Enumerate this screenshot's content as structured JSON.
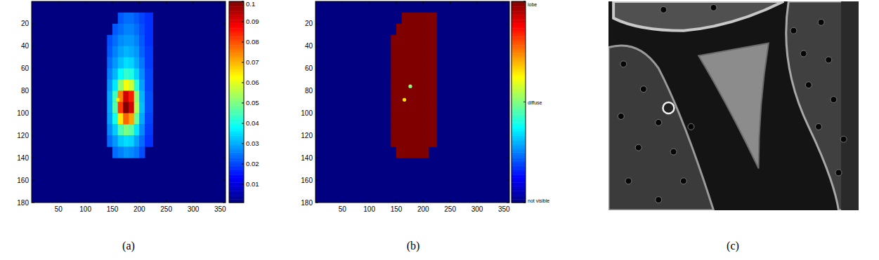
{
  "chart_data": [
    {
      "type": "heatmap",
      "title": "(a)",
      "marker": "square",
      "xlim": [
        0,
        360
      ],
      "ylim": [
        0,
        180
      ],
      "xticks": [
        50,
        100,
        150,
        200,
        250,
        300,
        350
      ],
      "yticks": [
        20,
        40,
        60,
        80,
        100,
        120,
        140,
        160,
        180
      ],
      "x_edges": [
        140,
        150,
        160,
        170,
        180,
        190,
        200,
        210,
        225
      ],
      "y_edges": [
        10,
        20,
        30,
        40,
        50,
        60,
        70,
        80,
        90,
        100,
        110,
        120,
        130,
        140
      ],
      "cells": [
        [
          null,
          null,
          0.022,
          0.024,
          0.024,
          0.022,
          0.02,
          0.018
        ],
        [
          null,
          0.022,
          0.024,
          0.026,
          0.026,
          0.024,
          0.021,
          0.018
        ],
        [
          0.021,
          0.024,
          0.027,
          0.028,
          0.028,
          0.026,
          0.022,
          0.018
        ],
        [
          0.022,
          0.026,
          0.029,
          0.031,
          0.03,
          0.028,
          0.023,
          0.019
        ],
        [
          0.024,
          0.028,
          0.032,
          0.035,
          0.034,
          0.03,
          0.025,
          0.019
        ],
        [
          0.026,
          0.031,
          0.038,
          0.043,
          0.041,
          0.034,
          0.027,
          0.02
        ],
        [
          0.028,
          0.036,
          0.052,
          0.062,
          0.058,
          0.042,
          0.029,
          0.02
        ],
        [
          0.03,
          0.044,
          0.075,
          0.092,
          0.085,
          0.052,
          0.031,
          0.021
        ],
        [
          0.03,
          0.046,
          0.082,
          0.1,
          0.092,
          0.055,
          0.032,
          0.021
        ],
        [
          0.029,
          0.04,
          0.065,
          0.078,
          0.072,
          0.048,
          0.03,
          0.02
        ],
        [
          0.027,
          0.033,
          0.045,
          0.05,
          0.047,
          0.036,
          0.027,
          0.019
        ],
        [
          0.024,
          0.028,
          0.033,
          0.035,
          0.034,
          0.029,
          0.024,
          0.018
        ],
        [
          null,
          0.024,
          0.026,
          0.028,
          0.027,
          0.025,
          0.021,
          null
        ]
      ],
      "points": [
        {
          "x": 160,
          "y": 88,
          "value": 0.065
        }
      ],
      "color_range": [
        0.001,
        0.1
      ],
      "color_ticks": [
        0.01,
        0.02,
        0.03,
        0.04,
        0.05,
        0.06,
        0.07,
        0.08,
        0.09,
        0.1
      ]
    },
    {
      "type": "heatmap",
      "title": "(b)",
      "marker": "circle",
      "xlim": [
        0,
        360
      ],
      "ylim": [
        0,
        180
      ],
      "xticks": [
        50,
        100,
        150,
        200,
        250,
        300,
        350
      ],
      "yticks": [
        20,
        40,
        60,
        80,
        100,
        120,
        140,
        160,
        180
      ],
      "x_edges": [
        140,
        150,
        160,
        170,
        180,
        190,
        200,
        210,
        225
      ],
      "y_edges": [
        10,
        20,
        30,
        40,
        50,
        60,
        70,
        80,
        90,
        100,
        110,
        120,
        130,
        140
      ],
      "cells": [
        [
          null,
          null,
          2,
          2,
          2,
          2,
          2,
          2
        ],
        [
          null,
          2,
          2,
          2,
          2,
          2,
          2,
          2
        ],
        [
          2,
          2,
          2,
          2,
          2,
          2,
          2,
          2
        ],
        [
          2,
          2,
          2,
          2,
          2,
          2,
          2,
          2
        ],
        [
          2,
          2,
          2,
          2,
          2,
          2,
          2,
          2
        ],
        [
          2,
          2,
          2,
          2,
          2,
          2,
          2,
          2
        ],
        [
          2,
          2,
          2,
          2,
          2,
          2,
          2,
          2
        ],
        [
          2,
          2,
          2,
          2,
          2,
          2,
          2,
          2
        ],
        [
          2,
          2,
          2,
          2,
          2,
          2,
          2,
          2
        ],
        [
          2,
          2,
          2,
          2,
          2,
          2,
          2,
          2
        ],
        [
          2,
          2,
          2,
          2,
          2,
          2,
          2,
          2
        ],
        [
          2,
          2,
          2,
          2,
          2,
          2,
          2,
          2
        ],
        [
          null,
          2,
          2,
          2,
          2,
          2,
          2,
          null
        ]
      ],
      "points": [
        {
          "x": 176,
          "y": 76,
          "value": 1.0
        },
        {
          "x": 165,
          "y": 88,
          "value": 1.3
        }
      ],
      "color_range": [
        0,
        2
      ],
      "color_ticks": [
        {
          "value": 0,
          "label": "not visible"
        },
        {
          "value": 1,
          "label": "diffuse"
        },
        {
          "value": 2,
          "label": "lobe"
        }
      ]
    },
    {
      "type": "image",
      "title": "(c)"
    }
  ]
}
